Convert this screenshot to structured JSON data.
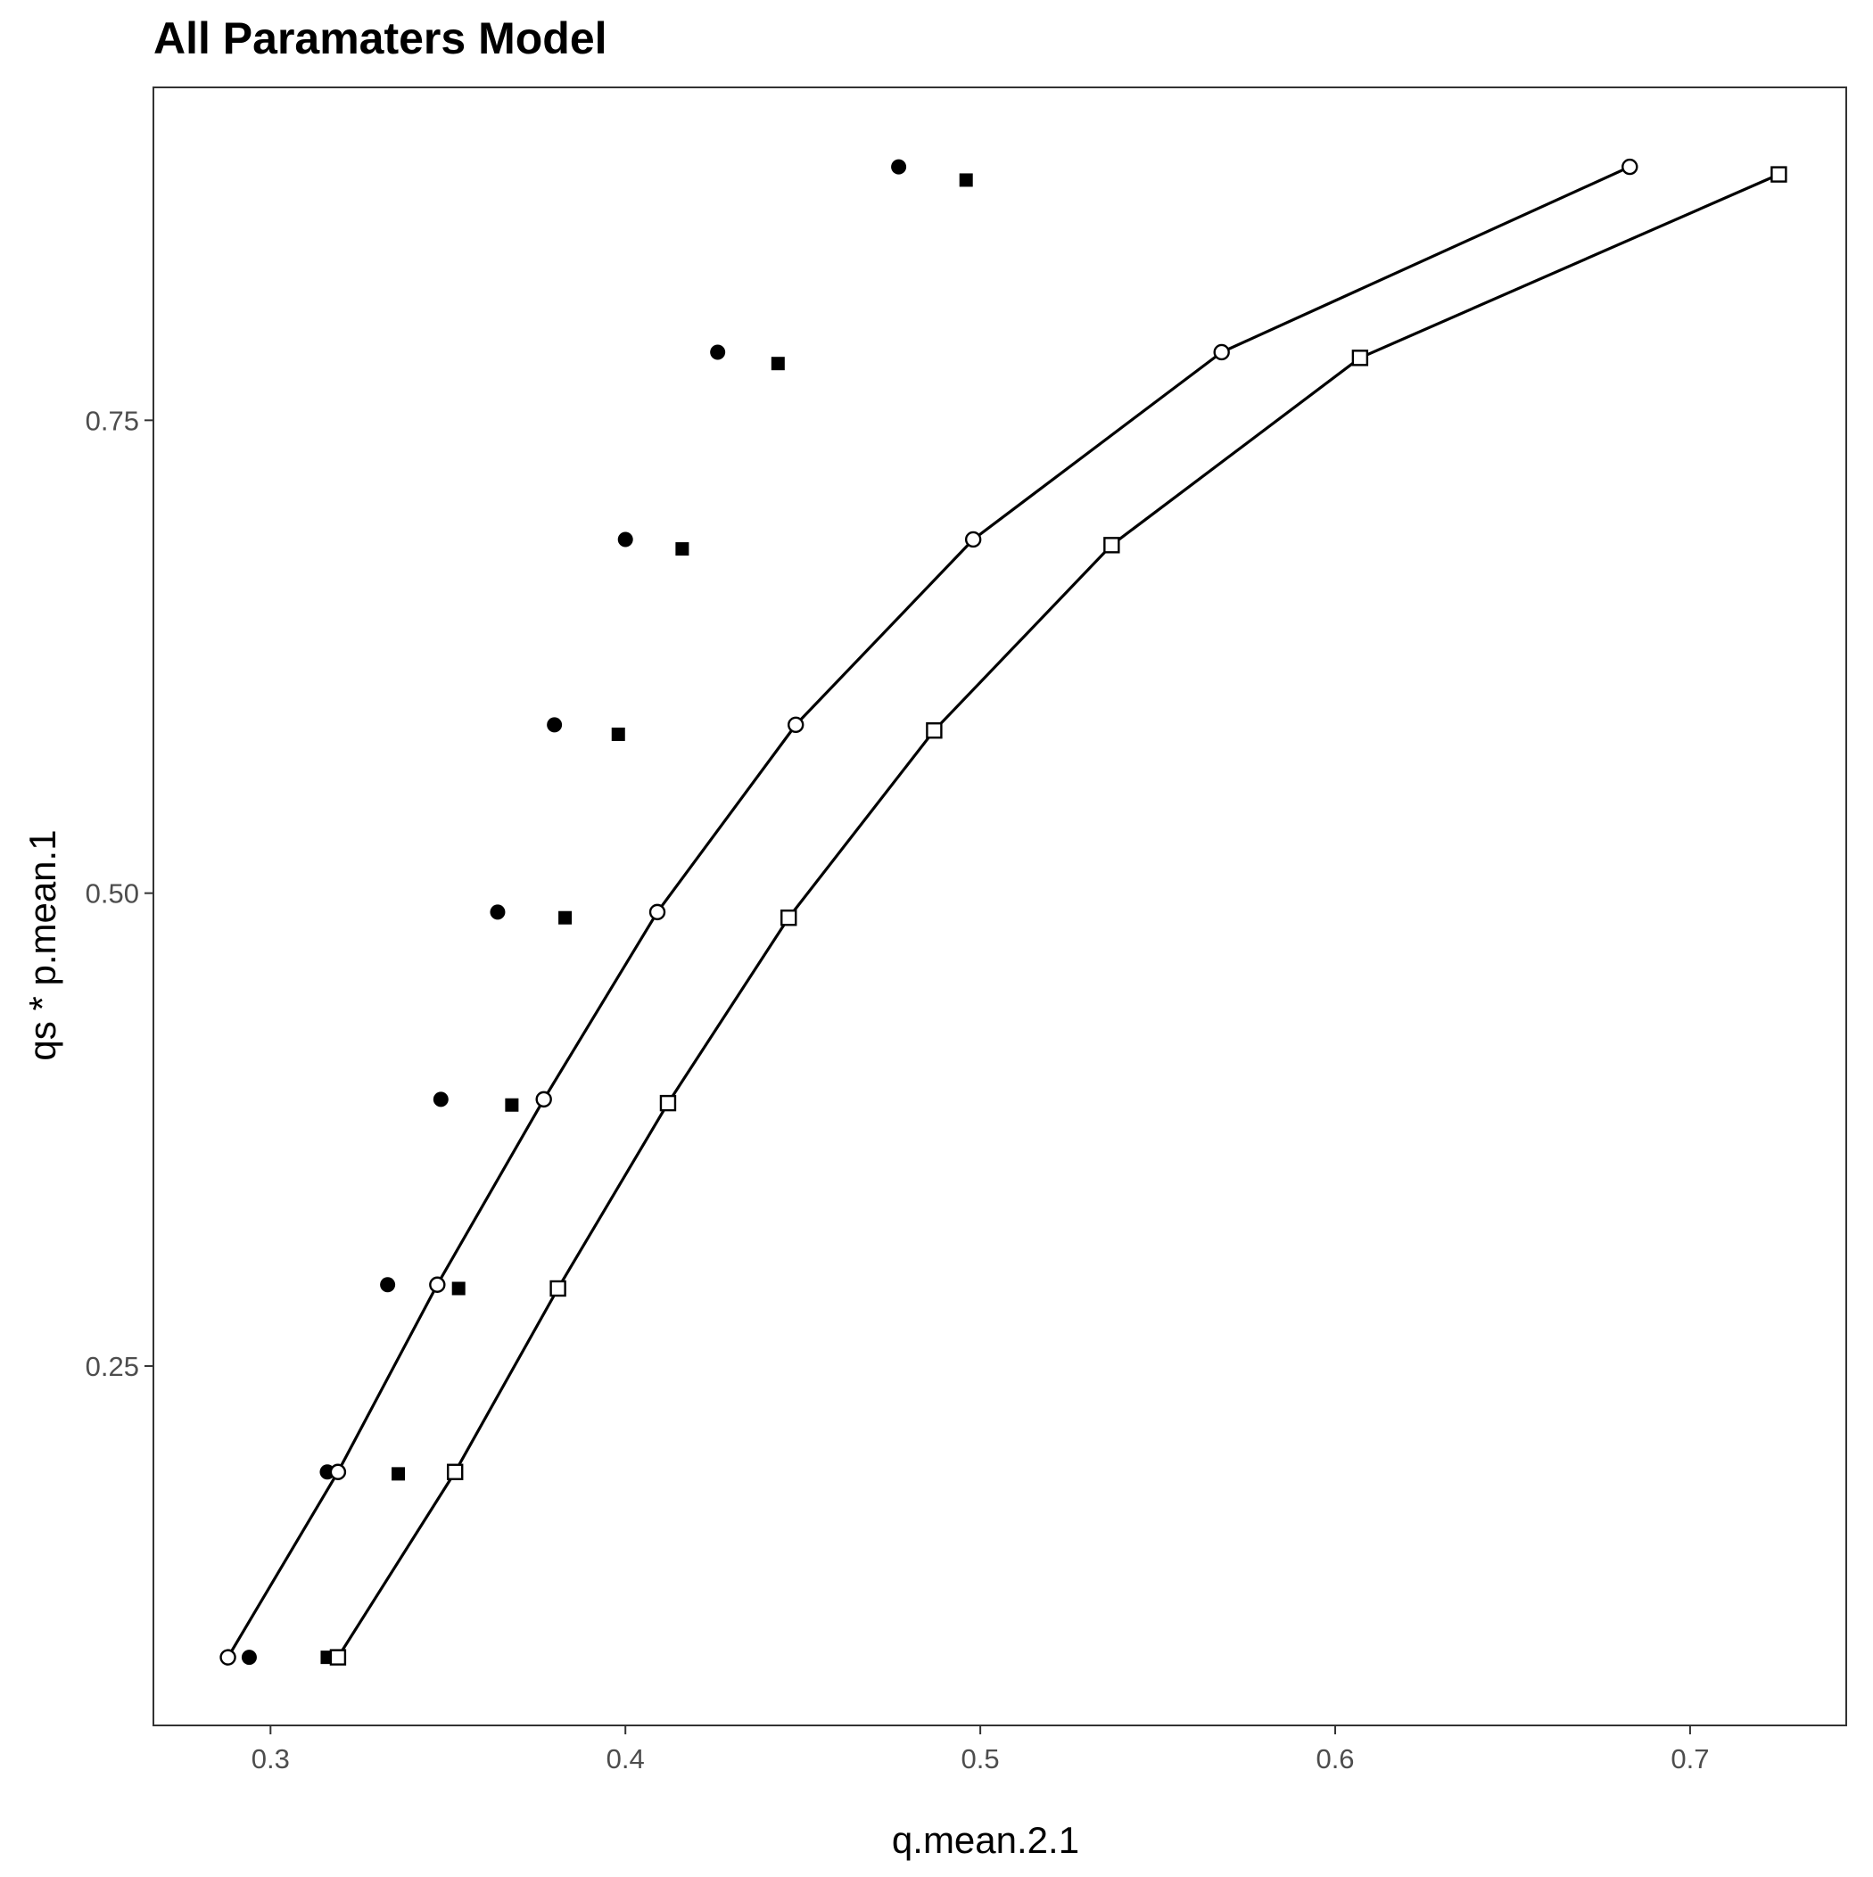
{
  "chart_data": {
    "type": "scatter",
    "title": "All Paramaters Model",
    "xlabel": "q.mean.2.1",
    "ylabel": "qs * p.mean.1",
    "xlim": [
      0.267,
      0.744
    ],
    "ylim": [
      0.06,
      0.926
    ],
    "x_ticks": [
      0.3,
      0.4,
      0.5,
      0.6,
      0.7
    ],
    "x_tick_labels": [
      "0.3",
      "0.4",
      "0.5",
      "0.6",
      "0.7"
    ],
    "y_ticks": [
      0.25,
      0.5,
      0.75
    ],
    "y_tick_labels": [
      "0.25",
      "0.50",
      "0.75"
    ],
    "grid": false,
    "series": [
      {
        "marker": "filled-circle",
        "line": false,
        "x": [
          0.294,
          0.316,
          0.333,
          0.348,
          0.364,
          0.38,
          0.4,
          0.426,
          0.477
        ],
        "y": [
          0.096,
          0.194,
          0.293,
          0.391,
          0.49,
          0.589,
          0.687,
          0.786,
          0.884
        ]
      },
      {
        "marker": "filled-square",
        "line": false,
        "x": [
          0.316,
          0.336,
          0.353,
          0.368,
          0.383,
          0.398,
          0.416,
          0.443,
          0.496
        ],
        "y": [
          0.096,
          0.193,
          0.291,
          0.388,
          0.487,
          0.584,
          0.682,
          0.78,
          0.877
        ]
      },
      {
        "marker": "open-circle",
        "line": true,
        "x": [
          0.288,
          0.319,
          0.347,
          0.377,
          0.409,
          0.448,
          0.498,
          0.568,
          0.683
        ],
        "y": [
          0.096,
          0.194,
          0.293,
          0.391,
          0.49,
          0.589,
          0.687,
          0.786,
          0.884
        ]
      },
      {
        "marker": "open-square",
        "line": true,
        "x": [
          0.319,
          0.352,
          0.381,
          0.412,
          0.446,
          0.487,
          0.537,
          0.607,
          0.725
        ],
        "y": [
          0.096,
          0.194,
          0.291,
          0.389,
          0.487,
          0.586,
          0.684,
          0.783,
          0.88
        ]
      }
    ]
  }
}
